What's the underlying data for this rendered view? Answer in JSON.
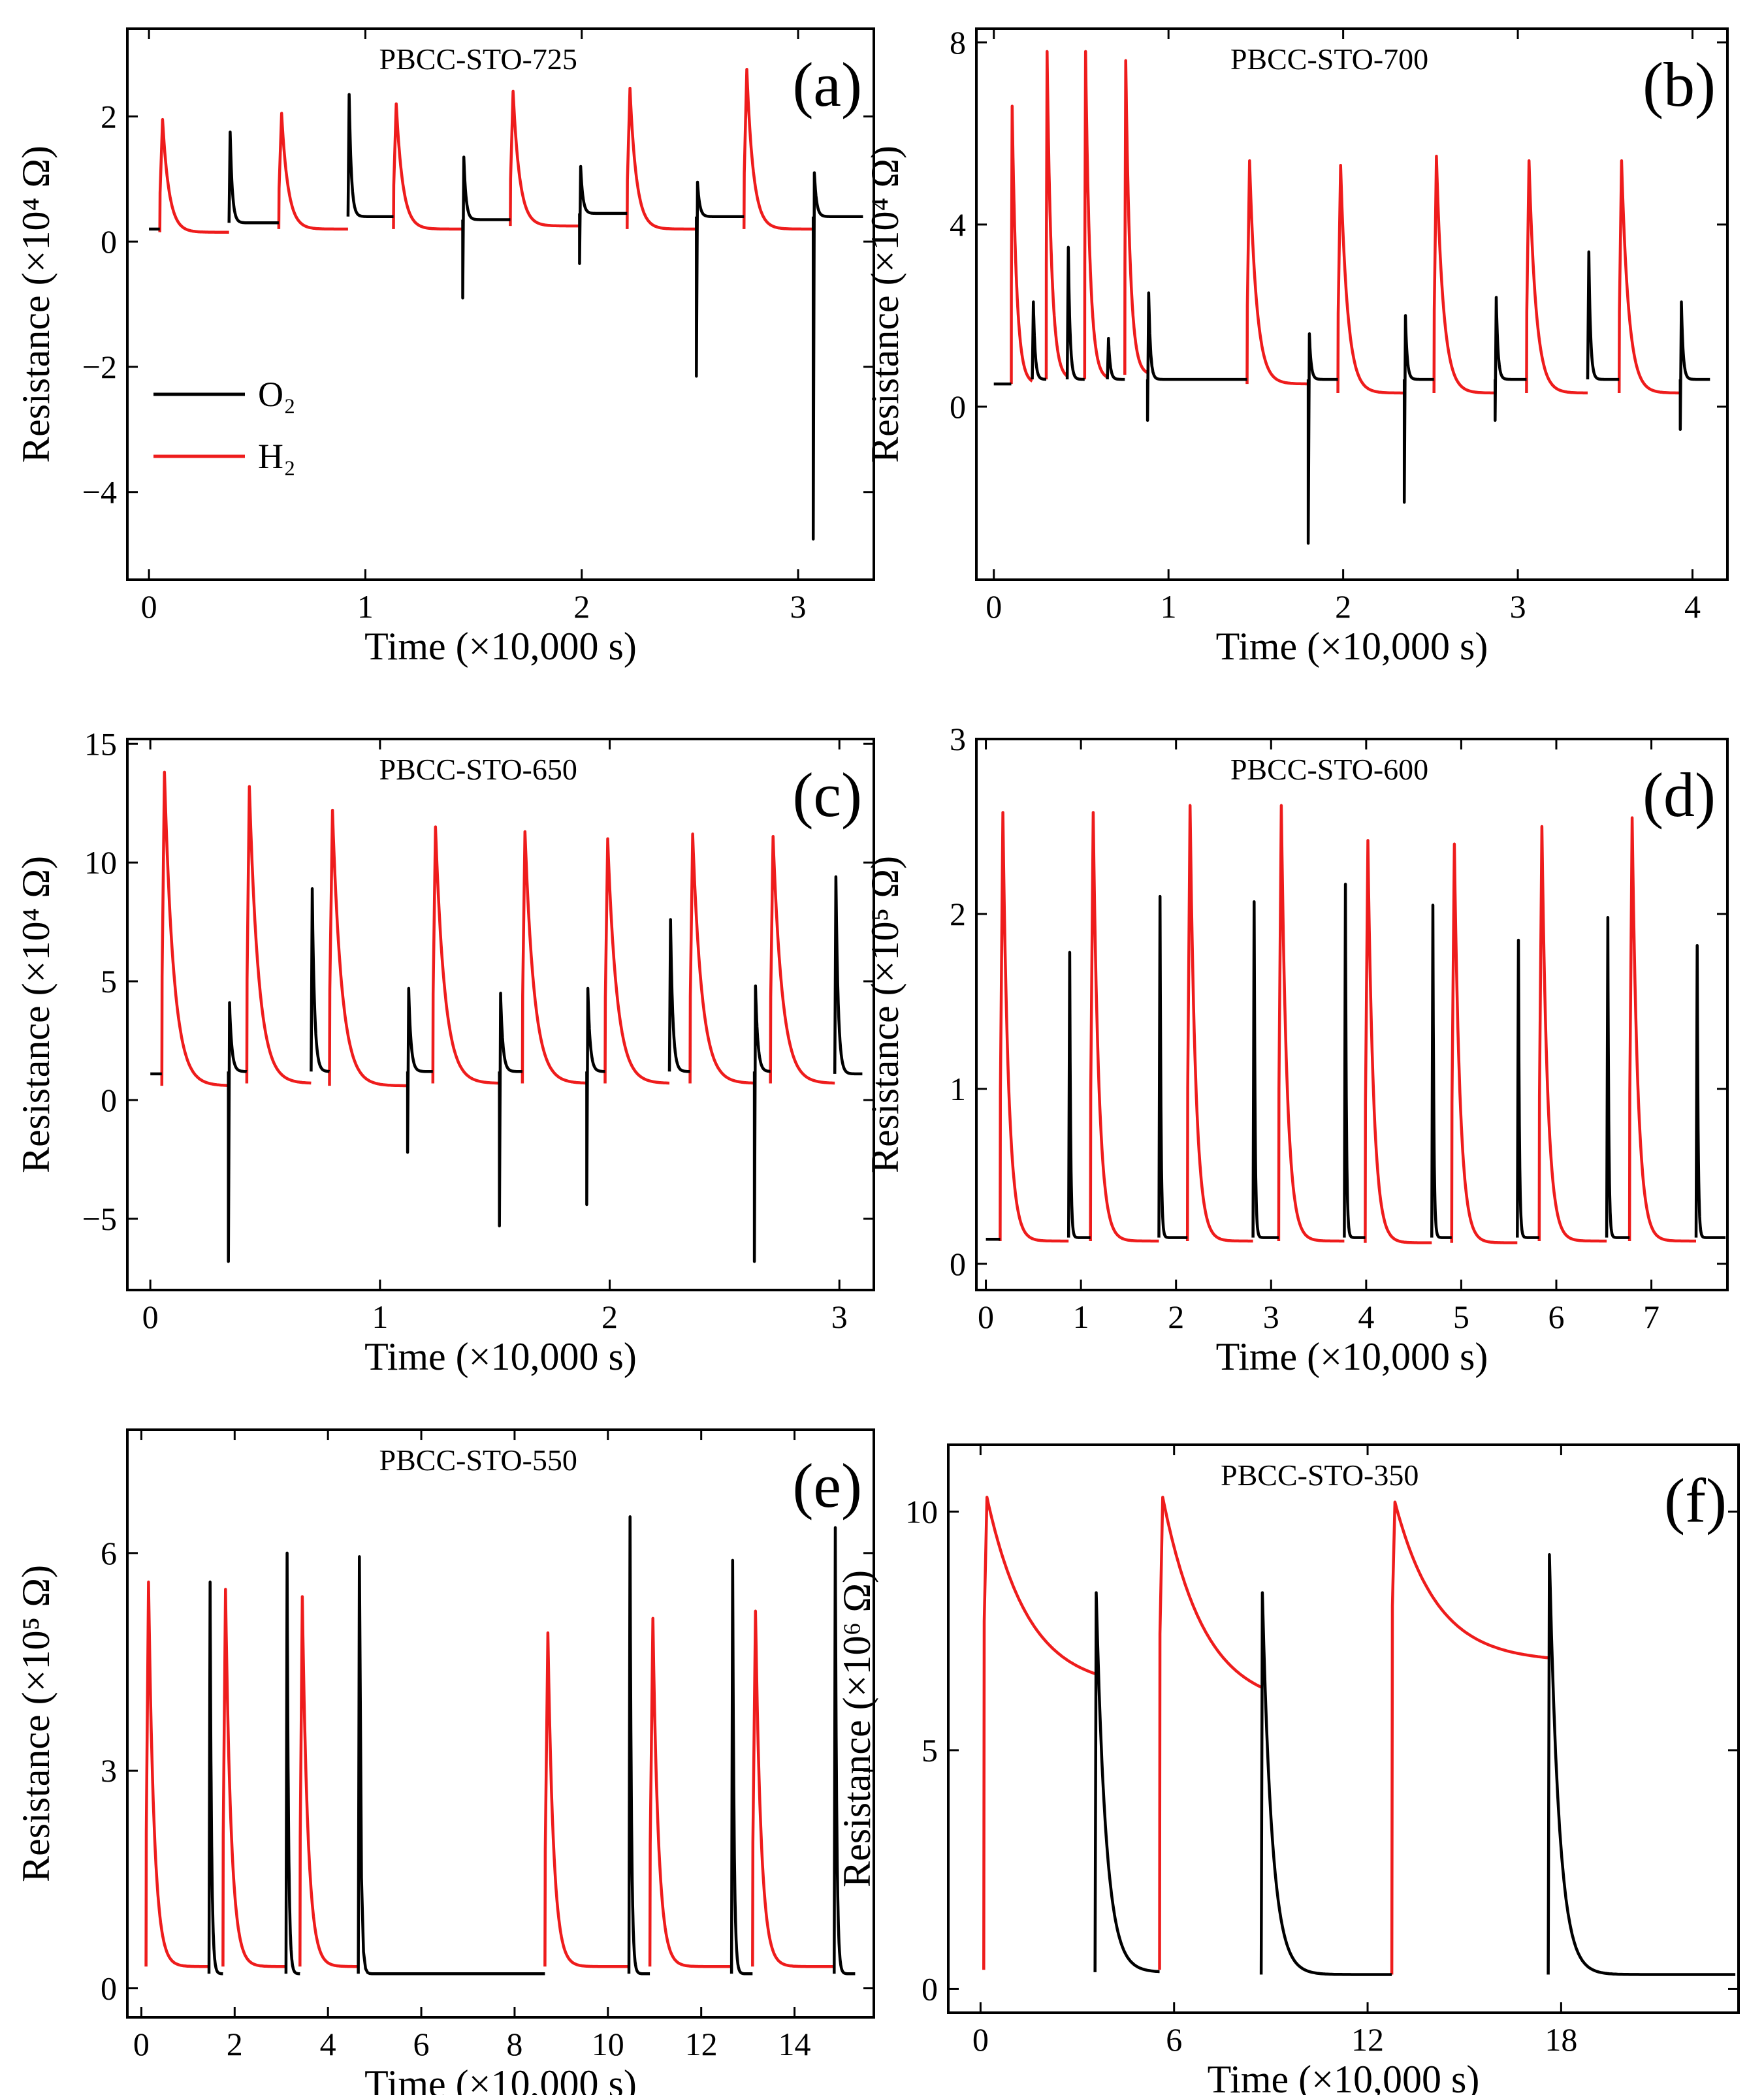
{
  "legend": {
    "o2_label": "O₂",
    "h2_label": "H₂"
  },
  "colors": {
    "o2": "#000000",
    "h2": "#ee1c1c",
    "axis": "#000000",
    "background": "#ffffff"
  },
  "chart_data": [
    {
      "id": "a",
      "type": "line",
      "title": "PBCC-STO-725",
      "letter": "(a)",
      "xlabel": "Time (×10,000 s)",
      "ylabel": "Resistance (×10⁴ Ω)",
      "xlim": [
        -0.1,
        3.35
      ],
      "ylim": [
        -5.4,
        3.4
      ],
      "xticks": [
        0,
        1,
        2,
        3
      ],
      "yticks": [
        -4,
        -2,
        0,
        2
      ],
      "series": [
        {
          "name": "H₂",
          "gas": "h2",
          "segments": [
            {
              "t0": 0.05,
              "t1": 0.37,
              "base": 0.15,
              "spike": 1.95,
              "tau": 0.03
            },
            {
              "t0": 0.6,
              "t1": 0.92,
              "base": 0.2,
              "spike": 2.05,
              "tau": 0.03
            },
            {
              "t0": 1.13,
              "t1": 1.45,
              "base": 0.2,
              "spike": 2.2,
              "tau": 0.03
            },
            {
              "t0": 1.67,
              "t1": 1.99,
              "base": 0.25,
              "spike": 2.4,
              "tau": 0.03
            },
            {
              "t0": 2.21,
              "t1": 2.53,
              "base": 0.2,
              "spike": 2.45,
              "tau": 0.03
            },
            {
              "t0": 2.75,
              "t1": 3.07,
              "base": 0.2,
              "spike": 2.75,
              "tau": 0.03
            }
          ]
        },
        {
          "name": "O₂",
          "gas": "o2",
          "segments": [
            {
              "t0": 0.0,
              "t1": 0.05,
              "base": 0.2,
              "spike": 0.2,
              "neg": 0.2,
              "tau": 0.01
            },
            {
              "t0": 0.37,
              "t1": 0.6,
              "base": 0.3,
              "spike": 1.75,
              "neg": 0.3,
              "tau": 0.01
            },
            {
              "t0": 0.92,
              "t1": 1.13,
              "base": 0.4,
              "spike": 2.35,
              "neg": 0.4,
              "tau": 0.01
            },
            {
              "t0": 1.45,
              "t1": 1.67,
              "base": 0.35,
              "spike": 1.35,
              "neg": -0.9,
              "tau": 0.01
            },
            {
              "t0": 1.99,
              "t1": 2.21,
              "base": 0.45,
              "spike": 1.2,
              "neg": -0.35,
              "tau": 0.01
            },
            {
              "t0": 2.53,
              "t1": 2.75,
              "base": 0.4,
              "spike": 0.95,
              "neg": -2.15,
              "tau": 0.01
            },
            {
              "t0": 3.07,
              "t1": 3.3,
              "base": 0.4,
              "spike": 1.1,
              "neg": -4.75,
              "tau": 0.01
            }
          ]
        }
      ]
    },
    {
      "id": "b",
      "type": "line",
      "title": "PBCC-STO-700",
      "letter": "(b)",
      "xlabel": "Time (×10,000 s)",
      "ylabel": "Resistance (×10⁴ Ω)",
      "xlim": [
        -0.1,
        4.2
      ],
      "ylim": [
        -3.8,
        8.3
      ],
      "xticks": [
        0,
        1,
        2,
        3,
        4
      ],
      "yticks": [
        0,
        4,
        8
      ],
      "series": [
        {
          "name": "H₂",
          "gas": "h2",
          "segments": [
            {
              "t0": 0.1,
              "t1": 0.22,
              "base": 0.5,
              "spike": 6.6,
              "tau": 0.025
            },
            {
              "t0": 0.3,
              "t1": 0.42,
              "base": 0.6,
              "spike": 7.8,
              "tau": 0.025
            },
            {
              "t0": 0.52,
              "t1": 0.65,
              "base": 0.6,
              "spike": 7.8,
              "tau": 0.025
            },
            {
              "t0": 0.75,
              "t1": 0.88,
              "base": 0.7,
              "spike": 7.6,
              "tau": 0.025
            },
            {
              "t0": 1.45,
              "t1": 1.8,
              "base": 0.5,
              "spike": 5.4,
              "tau": 0.04
            },
            {
              "t0": 1.97,
              "t1": 2.35,
              "base": 0.3,
              "spike": 5.3,
              "tau": 0.04
            },
            {
              "t0": 2.52,
              "t1": 2.87,
              "base": 0.3,
              "spike": 5.5,
              "tau": 0.04
            },
            {
              "t0": 3.05,
              "t1": 3.4,
              "base": 0.3,
              "spike": 5.4,
              "tau": 0.04
            },
            {
              "t0": 3.58,
              "t1": 3.93,
              "base": 0.3,
              "spike": 5.4,
              "tau": 0.04
            }
          ]
        },
        {
          "name": "O₂",
          "gas": "o2",
          "segments": [
            {
              "t0": 0.0,
              "t1": 0.1,
              "base": 0.5,
              "spike": 0.5,
              "neg": 0.5,
              "tau": 0.01
            },
            {
              "t0": 0.22,
              "t1": 0.3,
              "base": 0.6,
              "spike": 2.3,
              "neg": 0.6,
              "tau": 0.01
            },
            {
              "t0": 0.42,
              "t1": 0.52,
              "base": 0.6,
              "spike": 3.5,
              "neg": 0.6,
              "tau": 0.01
            },
            {
              "t0": 0.65,
              "t1": 0.75,
              "base": 0.6,
              "spike": 1.5,
              "neg": 0.6,
              "tau": 0.01
            },
            {
              "t0": 0.88,
              "t1": 1.45,
              "base": 0.6,
              "spike": 2.5,
              "neg": -0.3,
              "tau": 0.01
            },
            {
              "t0": 1.8,
              "t1": 1.97,
              "base": 0.6,
              "spike": 1.6,
              "neg": -3.0,
              "tau": 0.01
            },
            {
              "t0": 2.35,
              "t1": 2.52,
              "base": 0.6,
              "spike": 2.0,
              "neg": -2.1,
              "tau": 0.01
            },
            {
              "t0": 2.87,
              "t1": 3.05,
              "base": 0.6,
              "spike": 2.4,
              "neg": -0.3,
              "tau": 0.01
            },
            {
              "t0": 3.4,
              "t1": 3.58,
              "base": 0.6,
              "spike": 3.4,
              "neg": 0.6,
              "tau": 0.01
            },
            {
              "t0": 3.93,
              "t1": 4.1,
              "base": 0.6,
              "spike": 2.3,
              "neg": -0.5,
              "tau": 0.01
            }
          ]
        }
      ]
    },
    {
      "id": "c",
      "type": "line",
      "title": "PBCC-STO-650",
      "letter": "(c)",
      "xlabel": "Time (×10,000 s)",
      "ylabel": "Resistance (×10⁴ Ω)",
      "xlim": [
        -0.1,
        3.15
      ],
      "ylim": [
        -8.0,
        15.2
      ],
      "xticks": [
        0,
        1,
        2,
        3
      ],
      "yticks": [
        -5,
        0,
        5,
        10,
        15
      ],
      "series": [
        {
          "name": "H₂",
          "gas": "h2",
          "segments": [
            {
              "t0": 0.05,
              "t1": 0.34,
              "base": 0.6,
              "spike": 13.8,
              "tau": 0.04
            },
            {
              "t0": 0.42,
              "t1": 0.7,
              "base": 0.7,
              "spike": 13.2,
              "tau": 0.04
            },
            {
              "t0": 0.78,
              "t1": 1.12,
              "base": 0.6,
              "spike": 12.2,
              "tau": 0.04
            },
            {
              "t0": 1.23,
              "t1": 1.52,
              "base": 0.7,
              "spike": 11.5,
              "tau": 0.04
            },
            {
              "t0": 1.62,
              "t1": 1.9,
              "base": 0.7,
              "spike": 11.3,
              "tau": 0.04
            },
            {
              "t0": 1.98,
              "t1": 2.26,
              "base": 0.7,
              "spike": 11.0,
              "tau": 0.04
            },
            {
              "t0": 2.35,
              "t1": 2.63,
              "base": 0.7,
              "spike": 11.2,
              "tau": 0.04
            },
            {
              "t0": 2.7,
              "t1": 2.98,
              "base": 0.7,
              "spike": 11.1,
              "tau": 0.04
            }
          ]
        },
        {
          "name": "O₂",
          "gas": "o2",
          "segments": [
            {
              "t0": 0.0,
              "t1": 0.05,
              "base": 1.1,
              "spike": 1.1,
              "neg": 1.1,
              "tau": 0.01
            },
            {
              "t0": 0.34,
              "t1": 0.42,
              "base": 1.2,
              "spike": 4.1,
              "neg": -6.8,
              "tau": 0.01
            },
            {
              "t0": 0.7,
              "t1": 0.78,
              "base": 1.2,
              "spike": 8.9,
              "neg": 1.2,
              "tau": 0.01
            },
            {
              "t0": 1.12,
              "t1": 1.23,
              "base": 1.2,
              "spike": 4.7,
              "neg": -2.2,
              "tau": 0.01
            },
            {
              "t0": 1.52,
              "t1": 1.62,
              "base": 1.2,
              "spike": 4.5,
              "neg": -5.3,
              "tau": 0.01
            },
            {
              "t0": 1.9,
              "t1": 1.98,
              "base": 1.2,
              "spike": 4.7,
              "neg": -4.4,
              "tau": 0.01
            },
            {
              "t0": 2.26,
              "t1": 2.35,
              "base": 1.2,
              "spike": 7.6,
              "neg": 1.2,
              "tau": 0.01
            },
            {
              "t0": 2.63,
              "t1": 2.7,
              "base": 1.2,
              "spike": 4.8,
              "neg": -6.8,
              "tau": 0.01
            },
            {
              "t0": 2.98,
              "t1": 3.1,
              "base": 1.1,
              "spike": 9.4,
              "neg": 1.1,
              "tau": 0.01
            }
          ]
        }
      ]
    },
    {
      "id": "d",
      "type": "line",
      "title": "PBCC-STO-600",
      "letter": "(d)",
      "xlabel": "Time (×10,000 s)",
      "ylabel": "Resistance (×10⁵ Ω)",
      "xlim": [
        -0.1,
        7.8
      ],
      "ylim": [
        -0.15,
        3.0
      ],
      "xticks": [
        0,
        1,
        2,
        3,
        4,
        5,
        6,
        7
      ],
      "yticks": [
        0,
        1,
        2,
        3
      ],
      "series": [
        {
          "name": "H₂",
          "gas": "h2",
          "segments": [
            {
              "t0": 0.15,
              "t1": 0.87,
              "base": 0.13,
              "spike": 2.58,
              "tau": 0.06
            },
            {
              "t0": 1.1,
              "t1": 1.82,
              "base": 0.13,
              "spike": 2.58,
              "tau": 0.06
            },
            {
              "t0": 2.12,
              "t1": 2.81,
              "base": 0.13,
              "spike": 2.62,
              "tau": 0.06
            },
            {
              "t0": 3.08,
              "t1": 3.77,
              "base": 0.13,
              "spike": 2.62,
              "tau": 0.06
            },
            {
              "t0": 3.99,
              "t1": 4.69,
              "base": 0.12,
              "spike": 2.42,
              "tau": 0.06
            },
            {
              "t0": 4.9,
              "t1": 5.59,
              "base": 0.12,
              "spike": 2.4,
              "tau": 0.06
            },
            {
              "t0": 5.82,
              "t1": 6.53,
              "base": 0.13,
              "spike": 2.5,
              "tau": 0.06
            },
            {
              "t0": 6.77,
              "t1": 7.47,
              "base": 0.13,
              "spike": 2.55,
              "tau": 0.06
            }
          ]
        },
        {
          "name": "O₂",
          "gas": "o2",
          "segments": [
            {
              "t0": 0.0,
              "t1": 0.15,
              "base": 0.14,
              "spike": 0.14,
              "neg": 0.14,
              "tau": 0.01
            },
            {
              "t0": 0.87,
              "t1": 1.1,
              "base": 0.15,
              "spike": 1.78,
              "neg": 0.15,
              "tau": 0.01
            },
            {
              "t0": 1.82,
              "t1": 2.12,
              "base": 0.15,
              "spike": 2.1,
              "neg": 0.15,
              "tau": 0.01
            },
            {
              "t0": 2.81,
              "t1": 3.08,
              "base": 0.15,
              "spike": 2.07,
              "neg": 0.15,
              "tau": 0.01
            },
            {
              "t0": 3.77,
              "t1": 3.99,
              "base": 0.15,
              "spike": 2.17,
              "neg": 0.15,
              "tau": 0.01
            },
            {
              "t0": 4.69,
              "t1": 4.9,
              "base": 0.15,
              "spike": 2.05,
              "neg": 0.15,
              "tau": 0.01
            },
            {
              "t0": 5.59,
              "t1": 5.82,
              "base": 0.15,
              "spike": 1.85,
              "neg": 0.15,
              "tau": 0.01
            },
            {
              "t0": 6.53,
              "t1": 6.77,
              "base": 0.15,
              "spike": 1.98,
              "neg": 0.15,
              "tau": 0.01
            },
            {
              "t0": 7.47,
              "t1": 7.78,
              "base": 0.15,
              "spike": 1.82,
              "neg": 0.15,
              "tau": 0.01
            }
          ]
        }
      ]
    },
    {
      "id": "e",
      "type": "line",
      "title": "PBCC-STO-550",
      "letter": "(e)",
      "xlabel": "Time (×10,000 s)",
      "ylabel": "Resistance (×10⁵ Ω)",
      "xlim": [
        -0.3,
        15.7
      ],
      "ylim": [
        -0.4,
        7.7
      ],
      "xticks": [
        0,
        2,
        4,
        6,
        8,
        10,
        12,
        14
      ],
      "yticks": [
        0,
        3,
        6
      ],
      "series": [
        {
          "name": "H₂",
          "gas": "h2",
          "segments": [
            {
              "t0": 0.1,
              "t1": 1.45,
              "base": 0.3,
              "spike": 5.6,
              "tau": 0.12
            },
            {
              "t0": 1.75,
              "t1": 3.1,
              "base": 0.3,
              "spike": 5.5,
              "tau": 0.12
            },
            {
              "t0": 3.4,
              "t1": 4.65,
              "base": 0.3,
              "spike": 5.4,
              "tau": 0.12
            },
            {
              "t0": 8.65,
              "t1": 10.45,
              "base": 0.3,
              "spike": 4.9,
              "tau": 0.12
            },
            {
              "t0": 10.9,
              "t1": 12.65,
              "base": 0.3,
              "spike": 5.1,
              "tau": 0.12
            },
            {
              "t0": 13.1,
              "t1": 14.85,
              "base": 0.3,
              "spike": 5.2,
              "tau": 0.12
            }
          ]
        },
        {
          "name": "O₂",
          "gas": "o2",
          "segments": [
            {
              "t0": 1.45,
              "t1": 1.75,
              "base": 0.2,
              "spike": 5.6,
              "neg": 0.2,
              "tau": 0.03
            },
            {
              "t0": 3.1,
              "t1": 3.4,
              "base": 0.2,
              "spike": 6.0,
              "neg": 0.2,
              "tau": 0.03
            },
            {
              "t0": 4.65,
              "t1": 8.65,
              "base": 0.2,
              "spike": 5.95,
              "neg": 0.2,
              "tau": 0.03
            },
            {
              "t0": 10.45,
              "t1": 10.9,
              "base": 0.2,
              "spike": 6.5,
              "neg": 0.2,
              "tau": 0.03
            },
            {
              "t0": 12.65,
              "t1": 13.1,
              "base": 0.2,
              "spike": 5.9,
              "neg": 0.2,
              "tau": 0.03
            },
            {
              "t0": 14.85,
              "t1": 15.3,
              "base": 0.2,
              "spike": 6.35,
              "neg": 0.2,
              "tau": 0.03
            }
          ]
        }
      ]
    },
    {
      "id": "f",
      "type": "line",
      "title": "PBCC-STO-350",
      "letter": "(f)",
      "xlabel": "Time (×10,000 s)",
      "ylabel": "Resistance (×10⁶ Ω)",
      "xlim": [
        -1.0,
        23.5
      ],
      "ylim": [
        -0.5,
        11.4
      ],
      "xticks": [
        0,
        6,
        12,
        18
      ],
      "yticks": [
        0,
        5,
        10
      ],
      "series": [
        {
          "name": "H₂",
          "gas": "h2",
          "segments": [
            {
              "t0": 0.1,
              "t1": 3.55,
              "base": 6.3,
              "spike": 10.3,
              "tau": 1.3,
              "pre": 0.4
            },
            {
              "t0": 5.55,
              "t1": 8.7,
              "base": 5.9,
              "spike": 10.3,
              "tau": 1.3,
              "pre": 0.4
            },
            {
              "t0": 12.75,
              "t1": 17.6,
              "base": 6.85,
              "spike": 10.2,
              "tau": 1.3,
              "pre": 0.3
            }
          ]
        },
        {
          "name": "O₂",
          "gas": "o2",
          "segments": [
            {
              "t0": 3.55,
              "t1": 5.55,
              "base": 0.35,
              "spike": 8.3,
              "neg": 0.35,
              "tau": 0.3
            },
            {
              "t0": 8.7,
              "t1": 12.75,
              "base": 0.3,
              "spike": 8.3,
              "neg": 0.3,
              "tau": 0.3
            },
            {
              "t0": 17.6,
              "t1": 23.4,
              "base": 0.3,
              "spike": 9.1,
              "neg": 0.3,
              "tau": 0.3
            }
          ]
        }
      ]
    }
  ]
}
